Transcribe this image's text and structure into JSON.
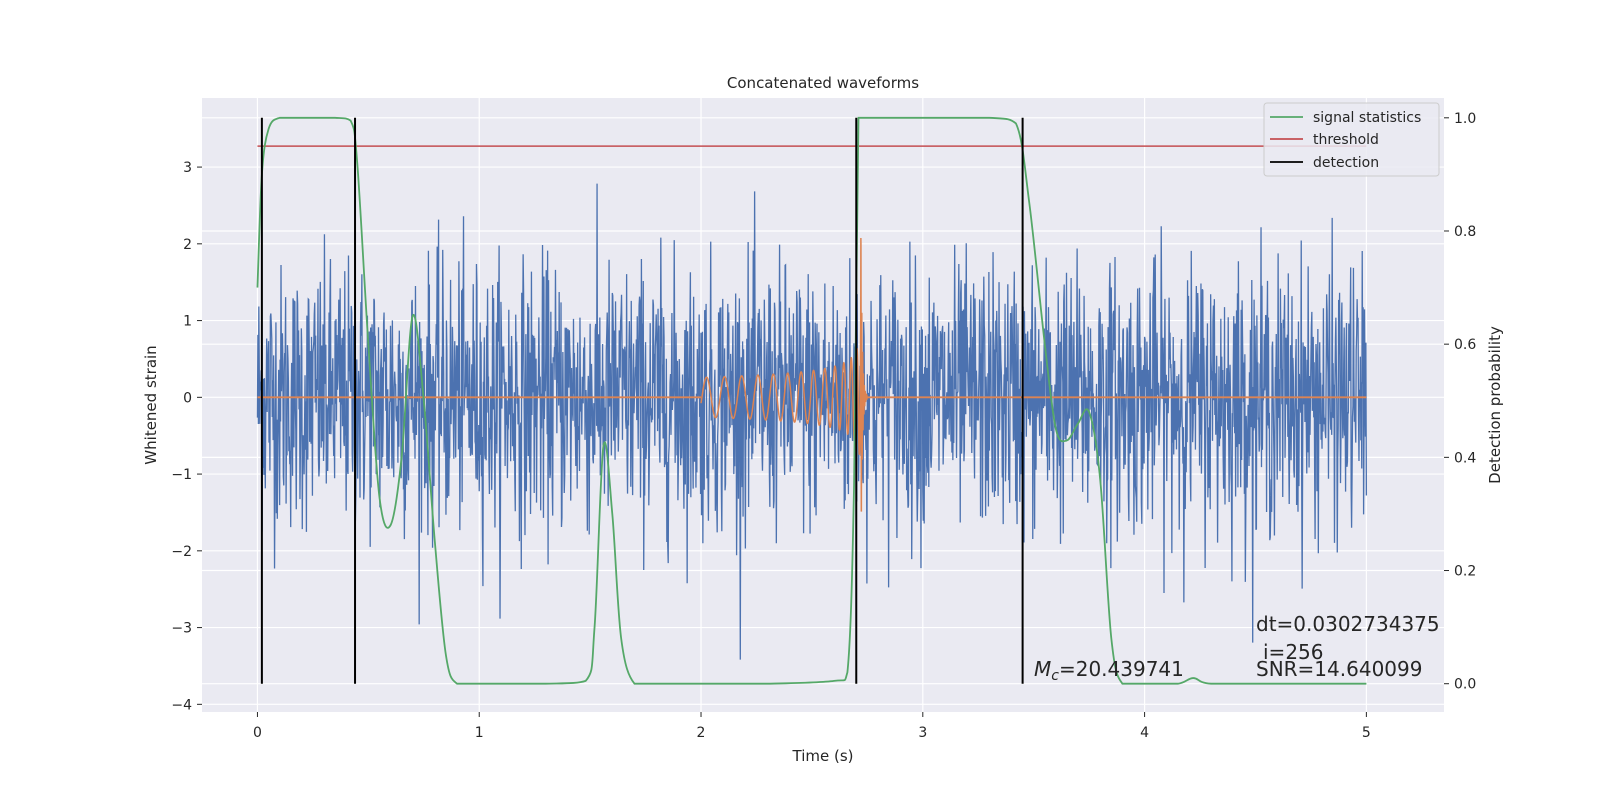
{
  "chart_data": {
    "type": "line",
    "title": "Concatenated waveforms",
    "xlabel": "Time (s)",
    "ylabel": "Whitened strain",
    "ylabel_right": "Detection probability",
    "xlim": [
      -0.25,
      5.35
    ],
    "ylim": [
      -4.1,
      3.9
    ],
    "ylim_right": [
      -0.05,
      1.035
    ],
    "x_ticks": [
      0,
      1,
      2,
      3,
      4,
      5
    ],
    "x_tick_labels": [
      "0",
      "1",
      "2",
      "3",
      "4",
      "5"
    ],
    "y_ticks": [
      -4,
      -3,
      -2,
      -1,
      0,
      1,
      2,
      3
    ],
    "y_tick_labels": [
      "−4",
      "−3",
      "−2",
      "−1",
      "0",
      "1",
      "2",
      "3"
    ],
    "y_ticks_right": [
      0.0,
      0.2,
      0.4,
      0.6,
      0.8,
      1.0
    ],
    "y_tick_labels_right": [
      "0.0",
      "0.2",
      "0.4",
      "0.6",
      "0.8",
      "1.0"
    ],
    "grid": true,
    "legend_position": "top-right",
    "legend": [
      {
        "label": "signal statistics",
        "color": "#55a868"
      },
      {
        "label": "threshold",
        "color": "#c44e52"
      },
      {
        "label": "detection",
        "color": "#000000"
      }
    ],
    "series": [
      {
        "name": "",
        "axis": "left",
        "color": "#4c72b0",
        "kind": "whitened strain noise",
        "x_range": [
          0,
          5
        ],
        "amplitude_range": [
          -3.7,
          3.5
        ]
      },
      {
        "name": "",
        "axis": "left",
        "color": "#dd8452",
        "kind": "injected chirp",
        "x_start": 2.0,
        "x_merge": 2.72,
        "x_end": 5.0,
        "peak_amplitude": 2.5
      },
      {
        "name": "signal statistics",
        "axis": "right",
        "color": "#55a868",
        "x": [
          0.0,
          0.02,
          0.05,
          0.1,
          0.2,
          0.35,
          0.42,
          0.45,
          0.5,
          0.55,
          0.6,
          0.65,
          0.7,
          0.75,
          0.8,
          0.85,
          0.9,
          1.0,
          1.3,
          1.48,
          1.52,
          1.56,
          1.6,
          1.64,
          1.7,
          1.8,
          2.0,
          2.3,
          2.6,
          2.66,
          2.69,
          2.71,
          2.74,
          2.8,
          3.0,
          3.3,
          3.42,
          3.48,
          3.55,
          3.6,
          3.65,
          3.7,
          3.75,
          3.8,
          3.85,
          3.9,
          4.0,
          4.15,
          4.22,
          4.3,
          4.6,
          5.0
        ],
        "y": [
          0.7,
          0.9,
          0.98,
          1.0,
          1.0,
          1.0,
          0.995,
          0.92,
          0.6,
          0.33,
          0.28,
          0.4,
          0.65,
          0.5,
          0.25,
          0.05,
          0.0,
          0.0,
          0.0,
          0.005,
          0.1,
          0.42,
          0.3,
          0.08,
          0.0,
          0.0,
          0.0,
          0.0,
          0.005,
          0.02,
          0.35,
          1.0,
          1.0,
          1.0,
          1.0,
          1.0,
          0.99,
          0.85,
          0.6,
          0.45,
          0.43,
          0.46,
          0.48,
          0.36,
          0.08,
          0.0,
          0.0,
          0.0,
          0.01,
          0.0,
          0.0,
          0.0
        ]
      },
      {
        "name": "threshold",
        "axis": "right",
        "color": "#c44e52",
        "x": [
          0.0,
          5.0
        ],
        "y": [
          0.95,
          0.95
        ]
      },
      {
        "name": "detection",
        "axis": "right",
        "color": "#000000",
        "kind": "vertical lines",
        "x": [
          0.02,
          0.44,
          2.7,
          3.45
        ],
        "y_range": [
          0.0,
          1.0
        ]
      }
    ],
    "annotations": [
      {
        "text": "dt=0.0302734375",
        "x": 4.5,
        "y": -2.95
      },
      {
        "text": "i=256",
        "x": 4.53,
        "y": -3.3
      },
      {
        "text": "SNR=14.640099",
        "x": 4.5,
        "y": -3.52
      },
      {
        "text_mc": "M",
        "text_sub": "c",
        "text_rest": "=20.439741",
        "x": 3.5,
        "y": -3.52
      }
    ]
  }
}
